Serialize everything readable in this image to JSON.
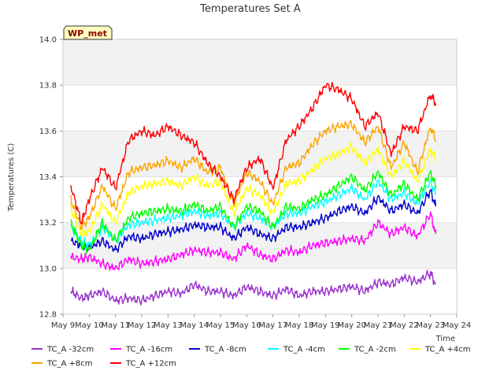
{
  "chart_data": {
    "type": "line",
    "title": "Temperatures Set A",
    "xlabel": "Time",
    "ylabel": "Temperatures (C)",
    "ylim": [
      12.8,
      14.0
    ],
    "xlim": [
      9,
      24
    ],
    "x_ticks": [
      {
        "value": 9,
        "label": "May 9"
      },
      {
        "value": 10,
        "label": "May 10"
      },
      {
        "value": 11,
        "label": "May 11"
      },
      {
        "value": 12,
        "label": "May 12"
      },
      {
        "value": 13,
        "label": "May 13"
      },
      {
        "value": 14,
        "label": "May 14"
      },
      {
        "value": 15,
        "label": "May 15"
      },
      {
        "value": 16,
        "label": "May 16"
      },
      {
        "value": 17,
        "label": "May 17"
      },
      {
        "value": 18,
        "label": "May 18"
      },
      {
        "value": 19,
        "label": "May 19"
      },
      {
        "value": 20,
        "label": "May 20"
      },
      {
        "value": 21,
        "label": "May 21"
      },
      {
        "value": 22,
        "label": "May 22"
      },
      {
        "value": 23,
        "label": "May 23"
      },
      {
        "value": 24,
        "label": "May 24"
      }
    ],
    "y_ticks": [
      12.8,
      13.0,
      13.2,
      13.4,
      13.6,
      13.8,
      14.0
    ],
    "grid": "horizontal bands",
    "legend_position": "bottom",
    "annotation": "WP_met",
    "x": [
      9.3,
      9.7,
      10.0,
      10.5,
      11.0,
      11.5,
      12.0,
      12.5,
      13.0,
      13.5,
      14.0,
      14.5,
      15.0,
      15.5,
      16.0,
      16.5,
      17.0,
      17.5,
      18.0,
      18.5,
      19.0,
      19.5,
      20.0,
      20.5,
      21.0,
      21.5,
      22.0,
      22.5,
      23.0,
      23.2
    ],
    "series": [
      {
        "name": "TC_A -32cm",
        "color": "#9932cc",
        "values": [
          12.9,
          12.87,
          12.88,
          12.9,
          12.86,
          12.87,
          12.86,
          12.88,
          12.9,
          12.89,
          12.93,
          12.9,
          12.9,
          12.88,
          12.92,
          12.9,
          12.88,
          12.91,
          12.88,
          12.9,
          12.9,
          12.91,
          12.92,
          12.9,
          12.94,
          12.93,
          12.96,
          12.94,
          12.98,
          12.93
        ]
      },
      {
        "name": "TC_A -16cm",
        "color": "#ff00ff",
        "values": [
          13.05,
          13.04,
          13.05,
          13.02,
          13.0,
          13.04,
          13.02,
          13.03,
          13.04,
          13.06,
          13.08,
          13.07,
          13.07,
          13.04,
          13.1,
          13.06,
          13.04,
          13.08,
          13.07,
          13.1,
          13.11,
          13.12,
          13.13,
          13.12,
          13.2,
          13.15,
          13.18,
          13.14,
          13.24,
          13.15
        ]
      },
      {
        "name": "TC_A -8cm",
        "color": "#0000cd",
        "values": [
          13.12,
          13.1,
          13.09,
          13.12,
          13.08,
          13.14,
          13.13,
          13.15,
          13.16,
          13.17,
          13.19,
          13.18,
          13.18,
          13.13,
          13.18,
          13.15,
          13.13,
          13.18,
          13.18,
          13.2,
          13.22,
          13.25,
          13.27,
          13.24,
          13.31,
          13.25,
          13.28,
          13.24,
          13.34,
          13.27
        ]
      },
      {
        "name": "TC_A -4cm",
        "color": "#00ffff",
        "values": [
          13.18,
          13.12,
          13.1,
          13.18,
          13.12,
          13.19,
          13.2,
          13.21,
          13.22,
          13.23,
          13.25,
          13.23,
          13.24,
          13.18,
          13.24,
          13.22,
          13.18,
          13.24,
          13.24,
          13.27,
          13.29,
          13.32,
          13.35,
          13.3,
          13.38,
          13.3,
          13.33,
          13.28,
          13.38,
          13.32
        ]
      },
      {
        "name": "TC_A -2cm",
        "color": "#00ff00",
        "values": [
          13.2,
          13.1,
          13.08,
          13.2,
          13.12,
          13.22,
          13.24,
          13.25,
          13.26,
          13.25,
          13.28,
          13.25,
          13.27,
          13.18,
          13.27,
          13.25,
          13.18,
          13.27,
          13.26,
          13.3,
          13.32,
          13.36,
          13.4,
          13.34,
          13.42,
          13.32,
          13.37,
          13.3,
          13.42,
          13.36
        ]
      },
      {
        "name": "TC_A +4cm",
        "color": "#ffff00",
        "values": [
          13.26,
          13.15,
          13.16,
          13.28,
          13.2,
          13.33,
          13.36,
          13.37,
          13.38,
          13.36,
          13.4,
          13.36,
          13.38,
          13.24,
          13.35,
          13.32,
          13.24,
          13.37,
          13.38,
          13.43,
          13.48,
          13.5,
          13.53,
          13.46,
          13.52,
          13.4,
          13.47,
          13.38,
          13.52,
          13.48
        ]
      },
      {
        "name": "TC_A +8cm",
        "color": "#ffa500",
        "values": [
          13.3,
          13.18,
          13.22,
          13.36,
          13.26,
          13.42,
          13.44,
          13.45,
          13.47,
          13.44,
          13.48,
          13.42,
          13.44,
          13.28,
          13.42,
          13.38,
          13.28,
          13.44,
          13.46,
          13.54,
          13.6,
          13.62,
          13.63,
          13.55,
          13.62,
          13.44,
          13.55,
          13.42,
          13.62,
          13.56
        ]
      },
      {
        "name": "TC_A +12cm",
        "color": "#ff0000",
        "values": [
          13.36,
          13.2,
          13.3,
          13.44,
          13.35,
          13.56,
          13.6,
          13.58,
          13.62,
          13.58,
          13.55,
          13.46,
          13.4,
          13.3,
          13.44,
          13.48,
          13.35,
          13.56,
          13.62,
          13.7,
          13.8,
          13.78,
          13.74,
          13.62,
          13.68,
          13.5,
          13.62,
          13.6,
          13.76,
          13.72
        ]
      }
    ]
  }
}
